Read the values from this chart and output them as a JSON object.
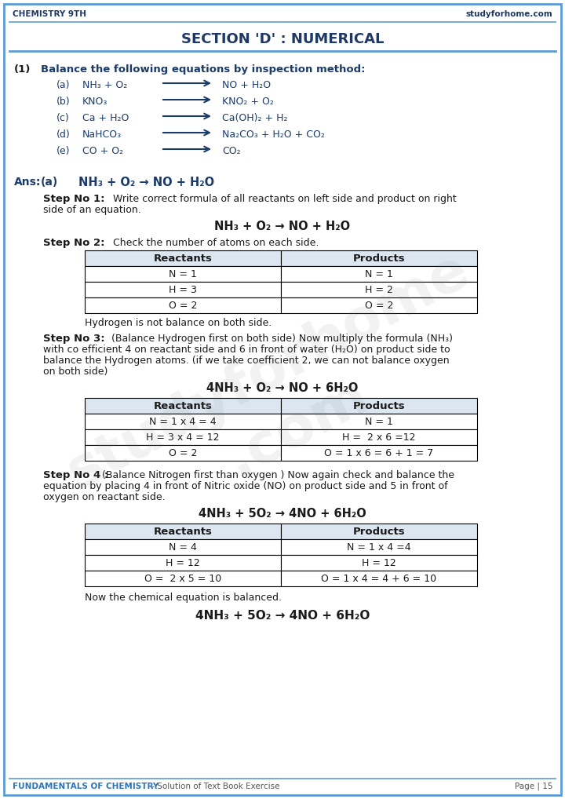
{
  "page_bg": "#ffffff",
  "border_color": "#5b9bd5",
  "header_left": "CHEMISTRY 9TH",
  "header_right": "studyforhome.com",
  "header_color": "#1f3864",
  "section_title": "SECTION 'D' : NUMERICAL",
  "section_color": "#1f3864",
  "footer_left": "FUNDAMENTALS OF CHEMISTRY",
  "footer_dash": " - Solution of Text Book Exercise",
  "footer_right": "Page | 15",
  "footer_color": "#2e75b6",
  "q1_label": "(1)",
  "q1_text": "Balance the following equations by inspection method:",
  "equations": [
    {
      "label": "(a)",
      "left": "NH₃ + O₂",
      "right": "NO + H₂O"
    },
    {
      "label": "(b)",
      "left": "KNO₃",
      "right": "KNO₂ + O₂"
    },
    {
      "label": "(c)",
      "left": "Ca + H₂O",
      "right": "Ca(OH)₂ + H₂"
    },
    {
      "label": "(d)",
      "left": "NaHCO₃",
      "right": "Na₂CO₃ + H₂O + CO₂"
    },
    {
      "label": "(e)",
      "left": "CO + O₂",
      "right": "CO₂"
    }
  ],
  "ans_label": "Ans: (a)",
  "ans_eq": "NH₃ + O₂ → NO + H₂O",
  "step1_label": "Step No 1:",
  "step1_eq": "NH₃ + O₂ → NO + H₂O",
  "step2_label": "Step No 2:",
  "step2_text": "   Check the number of atoms on each side.",
  "table1_headers": [
    "Reactants",
    "Products"
  ],
  "table1_rows": [
    [
      "N = 1",
      "N = 1"
    ],
    [
      "H = 3",
      "H = 2"
    ],
    [
      "O = 2",
      "O = 2"
    ]
  ],
  "table1_note": "Hydrogen is not balance on both side.",
  "step3_label": "Step No 3:",
  "step3_eq": "4NH₃ + O₂ → NO + 6H₂O",
  "table2_headers": [
    "Reactants",
    "Products"
  ],
  "table2_rows": [
    [
      "N = 1 x 4 = 4",
      "N = 1"
    ],
    [
      "H = 3 x 4 = 12",
      "H =  2 x 6 =12"
    ],
    [
      "O = 2",
      "O = 1 x 6 = 6 + 1 = 7"
    ]
  ],
  "step4_label": "Step No 4 :",
  "step4_eq": "4NH₃ + 5O₂ → 4NO + 6H₂O",
  "table3_headers": [
    "Reactants",
    "Products"
  ],
  "table3_rows": [
    [
      "N = 4",
      "N = 1 x 4 =4"
    ],
    [
      "H = 12",
      "H = 12"
    ],
    [
      "O =  2 x 5 = 10",
      "O = 1 x 4 = 4 + 6 = 10"
    ]
  ],
  "final_note": "Now the chemical equation is balanced.",
  "final_eq": "4NH₃ + 5O₂ → 4NO + 6H₂O",
  "eq_color": "#1a3a6b",
  "text_color": "#1a1a1a",
  "arrow_color": "#1a3a6b",
  "table_header_bg": "#dce6f1",
  "table_border": "#000000"
}
